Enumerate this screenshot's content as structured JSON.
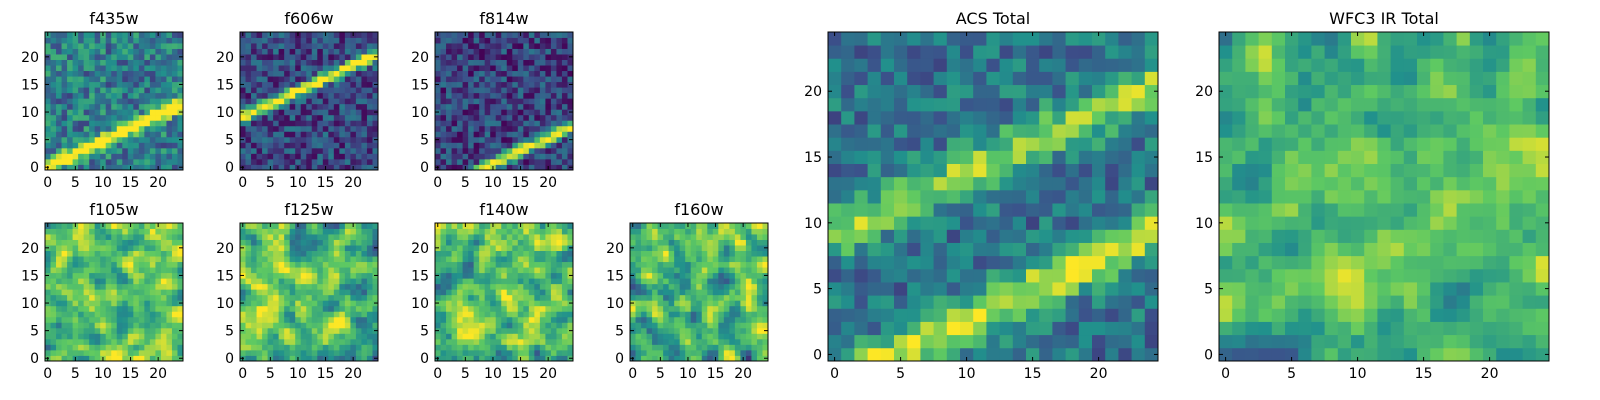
{
  "figure": {
    "colormap": "viridis",
    "colors": [
      "#440154",
      "#3b528b",
      "#21918c",
      "#5ec962",
      "#fde725"
    ]
  },
  "chart_data": [
    {
      "type": "heatmap",
      "title": "f435w",
      "grid_size": [
        25,
        25
      ],
      "x_ticks": [
        "0",
        "5",
        "10",
        "15",
        "20"
      ],
      "y_ticks": [
        "0",
        "5",
        "10",
        "15",
        "20"
      ],
      "pattern": "noise with diagonal bright band",
      "band": {
        "from": [
          0,
          0.5
        ],
        "to": [
          25,
          12
        ],
        "width": 1.6
      },
      "background_level": 0.42,
      "noise": 0.22,
      "seed": 11
    },
    {
      "type": "heatmap",
      "title": "f606w",
      "grid_size": [
        25,
        25
      ],
      "x_ticks": [
        "0",
        "5",
        "10",
        "15",
        "20"
      ],
      "y_ticks": [
        "0",
        "5",
        "10",
        "15",
        "20"
      ],
      "pattern": "noise with diagonal bright band",
      "band": {
        "from": [
          0,
          9.5
        ],
        "to": [
          25,
          21
        ],
        "width": 1.5
      },
      "background_level": 0.22,
      "noise": 0.2,
      "seed": 23
    },
    {
      "type": "heatmap",
      "title": "f814w",
      "grid_size": [
        25,
        25
      ],
      "x_ticks": [
        "0",
        "5",
        "10",
        "15",
        "20"
      ],
      "y_ticks": [
        "0",
        "5",
        "10",
        "15",
        "20"
      ],
      "pattern": "noise with diagonal bright band",
      "band": {
        "from": [
          6,
          -1
        ],
        "to": [
          25,
          8
        ],
        "width": 1.5
      },
      "background_level": 0.2,
      "noise": 0.2,
      "seed": 37
    },
    {
      "type": "heatmap",
      "title": "f105w",
      "grid_size": [
        25,
        25
      ],
      "x_ticks": [
        "0",
        "5",
        "10",
        "15",
        "20"
      ],
      "y_ticks": [
        "0",
        "5",
        "10",
        "15",
        "20"
      ],
      "pattern": "mottled noise, mostly bright",
      "background_level": 0.72,
      "noise": 0.35,
      "seed": 41
    },
    {
      "type": "heatmap",
      "title": "f125w",
      "grid_size": [
        25,
        25
      ],
      "x_ticks": [
        "0",
        "5",
        "10",
        "15",
        "20"
      ],
      "y_ticks": [
        "0",
        "5",
        "10",
        "15",
        "20"
      ],
      "pattern": "mottled noise, mostly bright",
      "background_level": 0.7,
      "noise": 0.36,
      "seed": 53
    },
    {
      "type": "heatmap",
      "title": "f140w",
      "grid_size": [
        25,
        25
      ],
      "x_ticks": [
        "0",
        "5",
        "10",
        "15",
        "20"
      ],
      "y_ticks": [
        "0",
        "5",
        "10",
        "15",
        "20"
      ],
      "pattern": "mottled noise, mostly bright",
      "background_level": 0.72,
      "noise": 0.36,
      "seed": 67
    },
    {
      "type": "heatmap",
      "title": "f160w",
      "grid_size": [
        25,
        25
      ],
      "x_ticks": [
        "0",
        "5",
        "10",
        "15",
        "20"
      ],
      "y_ticks": [
        "0",
        "5",
        "10",
        "15",
        "20"
      ],
      "pattern": "mottled noise, mostly bright",
      "background_level": 0.68,
      "noise": 0.38,
      "seed": 79
    },
    {
      "type": "heatmap",
      "title": "ACS Total",
      "grid_size": [
        25,
        25
      ],
      "x_ticks": [
        "0",
        "5",
        "10",
        "15",
        "20"
      ],
      "y_ticks": [
        "0",
        "5",
        "10",
        "15",
        "20"
      ],
      "pattern": "sum of ACS bands: two diagonal bright bands over noise",
      "bands": [
        {
          "from": [
            0,
            9.5
          ],
          "to": [
            25,
            21
          ],
          "width": 2.4,
          "strength": 0.45
        },
        {
          "from": [
            2,
            -1
          ],
          "to": [
            25,
            10
          ],
          "width": 2.4,
          "strength": 0.55
        }
      ],
      "background_level": 0.38,
      "noise": 0.18,
      "seed": 89
    },
    {
      "type": "heatmap",
      "title": "WFC3 IR Total",
      "grid_size": [
        25,
        25
      ],
      "x_ticks": [
        "0",
        "5",
        "10",
        "15",
        "20"
      ],
      "y_ticks": [
        "0",
        "5",
        "10",
        "15",
        "20"
      ],
      "pattern": "sum of IR bands: bright with darker patches",
      "background_level": 0.66,
      "noise": 0.26,
      "seed": 97
    }
  ]
}
